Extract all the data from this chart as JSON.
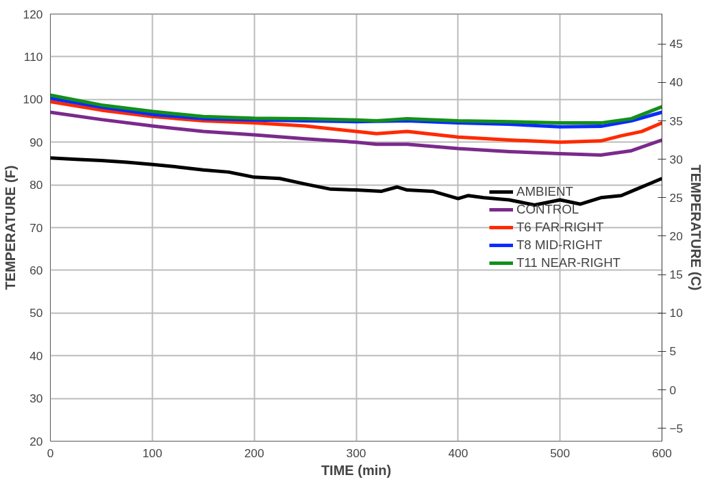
{
  "chart_data": {
    "type": "line",
    "xlabel": "TIME (min)",
    "ylabel": "TEMPERATURE (F)",
    "y2label": "TEMPERATURE (C)",
    "xlim": [
      0,
      600
    ],
    "xticks": [
      0,
      100,
      200,
      300,
      400,
      500,
      600
    ],
    "ylim": [
      20,
      120
    ],
    "yticks": [
      20,
      30,
      40,
      50,
      60,
      70,
      80,
      90,
      100,
      110,
      120
    ],
    "y2lim": [
      -6.667,
      48.889
    ],
    "y2ticks": [
      -5,
      0,
      5,
      10,
      15,
      20,
      25,
      30,
      35,
      40,
      45
    ],
    "grid": true,
    "legend": "right",
    "marker": "none",
    "line_style": "solid",
    "series": [
      {
        "name": "AMBIENT",
        "color": "#000000",
        "x": [
          0,
          25,
          50,
          75,
          100,
          125,
          150,
          175,
          200,
          225,
          250,
          275,
          300,
          325,
          340,
          350,
          375,
          400,
          410,
          425,
          450,
          475,
          490,
          500,
          520,
          540,
          560,
          575,
          590,
          600
        ],
        "values": [
          86.3,
          86,
          85.7,
          85.3,
          84.8,
          84.2,
          83.5,
          83,
          81.8,
          81.5,
          80.2,
          79,
          78.8,
          78.5,
          79.5,
          78.8,
          78.5,
          76.8,
          77.5,
          77,
          76.5,
          75.3,
          76,
          76.5,
          75.5,
          77,
          77.5,
          79,
          80.5,
          81.5
        ]
      },
      {
        "name": "CONTROL",
        "color": "#7b2a8c",
        "x": [
          0,
          50,
          100,
          150,
          200,
          250,
          300,
          320,
          350,
          400,
          450,
          500,
          540,
          570,
          600
        ],
        "values": [
          97,
          95.3,
          93.8,
          92.5,
          91.7,
          90.8,
          90,
          89.5,
          89.5,
          88.5,
          87.8,
          87.3,
          87,
          88,
          90.5
        ]
      },
      {
        "name": "T6 FAR-RIGHT",
        "color": "#ff2a00",
        "x": [
          0,
          50,
          100,
          150,
          200,
          250,
          300,
          320,
          350,
          400,
          450,
          500,
          540,
          560,
          580,
          600
        ],
        "values": [
          99.5,
          97.5,
          96,
          95,
          94.5,
          93.8,
          92.5,
          92,
          92.5,
          91.2,
          90.5,
          90,
          90.3,
          91.5,
          92.5,
          94.5
        ]
      },
      {
        "name": "T8 MID-RIGHT",
        "color": "#0a2cff",
        "x": [
          0,
          50,
          100,
          150,
          200,
          250,
          300,
          350,
          400,
          450,
          500,
          540,
          570,
          600
        ],
        "values": [
          100.3,
          98.2,
          96.5,
          95.5,
          95.2,
          95,
          94.8,
          95,
          94.5,
          94.2,
          93.6,
          93.7,
          95,
          97
        ]
      },
      {
        "name": "T11 NEAR-RIGHT",
        "color": "#12901a",
        "x": [
          0,
          50,
          100,
          150,
          200,
          250,
          300,
          320,
          350,
          400,
          450,
          500,
          540,
          570,
          600
        ],
        "values": [
          101,
          98.7,
          97.2,
          96,
          95.6,
          95.5,
          95.2,
          95,
          95.5,
          95,
          94.8,
          94.5,
          94.5,
          95.5,
          98.3
        ]
      }
    ]
  }
}
